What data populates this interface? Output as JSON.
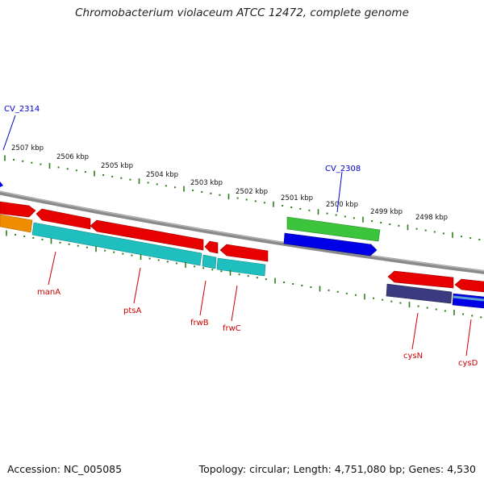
{
  "title": "Chromobacterium violaceum ATCC 12472, complete genome",
  "accession": "Accession: NC_005085",
  "topology": "Topology: circular; Length: 4,751,080 bp; Genes: 4,530",
  "scale_labels": [
    "2507 kbp",
    "2506 kbp",
    "2505 kbp",
    "2504 kbp",
    "2503 kbp",
    "2502 kbp",
    "2501 kbp",
    "2500 kbp",
    "2499 kbp",
    "2498 kbp"
  ],
  "gene_labels": {
    "cv2314": "CV_2314",
    "cv2308": "CV_2308",
    "manA": "manA",
    "ptsA": "ptsA",
    "frwB": "frwB",
    "frwC": "frwC",
    "cysN": "cysN",
    "cysD": "cysD"
  },
  "colors": {
    "backbone": "#8a8a8a",
    "tick": "#2e7d1a",
    "gene_red": "#e60000",
    "gene_cyan": "#1fbfbf",
    "gene_orange": "#f08c00",
    "gene_green": "#3cc43c",
    "gene_blue": "#0000e6",
    "gene_navy": "#3a3a80",
    "label_red": "#cc0000",
    "label_blue": "#0000cc"
  }
}
